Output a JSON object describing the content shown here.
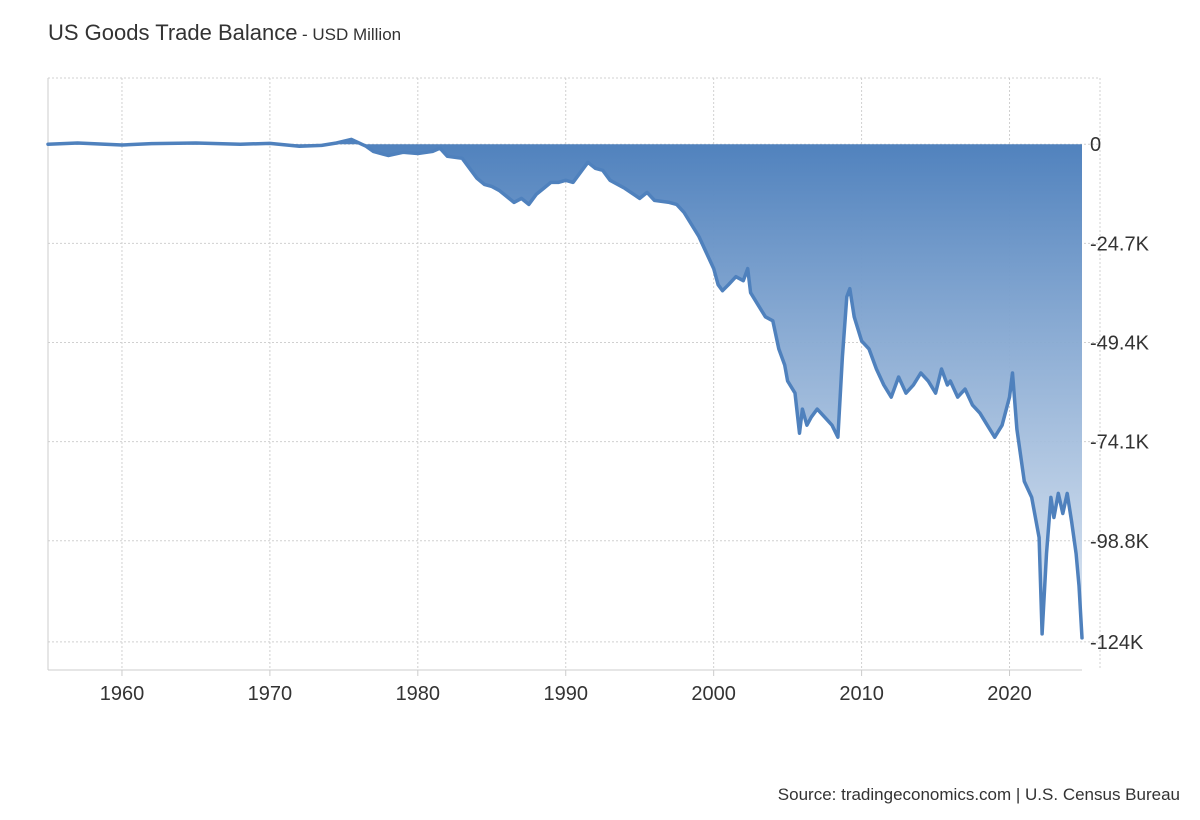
{
  "title": "US Goods Trade Balance",
  "subtitle": "- USD Million",
  "source": "Source: tradingeconomics.com | U.S. Census Bureau",
  "colors": {
    "line": "#4f81bd",
    "fill_top": "#4f81bd",
    "fill_bottom": "#dce6f2",
    "grid": "#d0d0d0"
  },
  "chart_data": {
    "type": "area",
    "title": "US Goods Trade Balance",
    "subtitle": "- USD Million",
    "xlabel": "",
    "ylabel": "",
    "xlim": [
      1955,
      2024.9
    ],
    "ylim": [
      -131000,
      16500
    ],
    "x_ticks": [
      1960,
      1970,
      1980,
      1990,
      2000,
      2010,
      2020
    ],
    "x_tick_labels": [
      "1960",
      "1970",
      "1980",
      "1990",
      "2000",
      "2010",
      "2020"
    ],
    "y_ticks": [
      0,
      -24700,
      -49400,
      -74100,
      -98800,
      -124000
    ],
    "y_tick_labels": [
      "0",
      "-24.7K",
      "-49.4K",
      "-74.1K",
      "-98.8K",
      "-124K"
    ],
    "y_axis_side": "right",
    "grid": true,
    "series": [
      {
        "points": [
          [
            1955.0,
            0
          ],
          [
            1957.0,
            300
          ],
          [
            1960.0,
            -200
          ],
          [
            1962.0,
            150
          ],
          [
            1965.0,
            300
          ],
          [
            1968.0,
            0
          ],
          [
            1970.0,
            200
          ],
          [
            1972.0,
            -500
          ],
          [
            1973.5,
            -300
          ],
          [
            1974.5,
            300
          ],
          [
            1975.5,
            1200
          ],
          [
            1976.5,
            -500
          ],
          [
            1977.0,
            -1800
          ],
          [
            1978.0,
            -2800
          ],
          [
            1979.0,
            -2000
          ],
          [
            1980.0,
            -2300
          ],
          [
            1981.0,
            -1800
          ],
          [
            1981.5,
            -1000
          ],
          [
            1982.0,
            -3000
          ],
          [
            1983.0,
            -3500
          ],
          [
            1984.0,
            -8500
          ],
          [
            1984.5,
            -10000
          ],
          [
            1985.0,
            -10500
          ],
          [
            1985.5,
            -11500
          ],
          [
            1986.0,
            -13000
          ],
          [
            1986.5,
            -14500
          ],
          [
            1987.0,
            -13500
          ],
          [
            1987.5,
            -15000
          ],
          [
            1988.0,
            -12500
          ],
          [
            1988.5,
            -11000
          ],
          [
            1989.0,
            -9500
          ],
          [
            1989.5,
            -9500
          ],
          [
            1990.0,
            -9000
          ],
          [
            1990.5,
            -9500
          ],
          [
            1991.0,
            -7000
          ],
          [
            1991.5,
            -4500
          ],
          [
            1992.0,
            -6000
          ],
          [
            1992.5,
            -6500
          ],
          [
            1993.0,
            -9000
          ],
          [
            1994.0,
            -11000
          ],
          [
            1995.0,
            -13500
          ],
          [
            1995.5,
            -12000
          ],
          [
            1996.0,
            -14000
          ],
          [
            1997.0,
            -14500
          ],
          [
            1997.5,
            -15000
          ],
          [
            1998.0,
            -17000
          ],
          [
            1998.5,
            -20000
          ],
          [
            1999.0,
            -23000
          ],
          [
            1999.5,
            -27000
          ],
          [
            2000.0,
            -31000
          ],
          [
            2000.3,
            -35000
          ],
          [
            2000.6,
            -36500
          ],
          [
            2001.0,
            -35000
          ],
          [
            2001.5,
            -33000
          ],
          [
            2002.0,
            -34000
          ],
          [
            2002.3,
            -31000
          ],
          [
            2002.5,
            -37000
          ],
          [
            2003.0,
            -40000
          ],
          [
            2003.5,
            -43000
          ],
          [
            2004.0,
            -44000
          ],
          [
            2004.4,
            -51000
          ],
          [
            2004.8,
            -55000
          ],
          [
            2005.0,
            -59000
          ],
          [
            2005.5,
            -62000
          ],
          [
            2005.8,
            -72000
          ],
          [
            2006.0,
            -66000
          ],
          [
            2006.3,
            -70000
          ],
          [
            2006.6,
            -68000
          ],
          [
            2007.0,
            -66000
          ],
          [
            2007.5,
            -68000
          ],
          [
            2008.0,
            -70000
          ],
          [
            2008.4,
            -73000
          ],
          [
            2008.7,
            -53000
          ],
          [
            2009.0,
            -38000
          ],
          [
            2009.2,
            -36000
          ],
          [
            2009.5,
            -43000
          ],
          [
            2010.0,
            -49000
          ],
          [
            2010.5,
            -51000
          ],
          [
            2011.0,
            -56000
          ],
          [
            2011.5,
            -60000
          ],
          [
            2012.0,
            -63000
          ],
          [
            2012.5,
            -58000
          ],
          [
            2013.0,
            -62000
          ],
          [
            2013.5,
            -60000
          ],
          [
            2014.0,
            -57000
          ],
          [
            2014.5,
            -59000
          ],
          [
            2015.0,
            -62000
          ],
          [
            2015.4,
            -56000
          ],
          [
            2015.8,
            -60000
          ],
          [
            2016.0,
            -59000
          ],
          [
            2016.5,
            -63000
          ],
          [
            2017.0,
            -61000
          ],
          [
            2017.5,
            -65000
          ],
          [
            2018.0,
            -67000
          ],
          [
            2018.5,
            -70000
          ],
          [
            2019.0,
            -73000
          ],
          [
            2019.5,
            -70000
          ],
          [
            2020.0,
            -63000
          ],
          [
            2020.2,
            -57000
          ],
          [
            2020.5,
            -71000
          ],
          [
            2021.0,
            -84000
          ],
          [
            2021.5,
            -88000
          ],
          [
            2022.0,
            -98000
          ],
          [
            2022.2,
            -122000
          ],
          [
            2022.5,
            -102000
          ],
          [
            2022.8,
            -88000
          ],
          [
            2023.0,
            -93000
          ],
          [
            2023.3,
            -87000
          ],
          [
            2023.6,
            -92000
          ],
          [
            2023.9,
            -87000
          ],
          [
            2024.2,
            -94000
          ],
          [
            2024.5,
            -102000
          ],
          [
            2024.7,
            -110000
          ],
          [
            2024.9,
            -123000
          ]
        ]
      }
    ]
  }
}
